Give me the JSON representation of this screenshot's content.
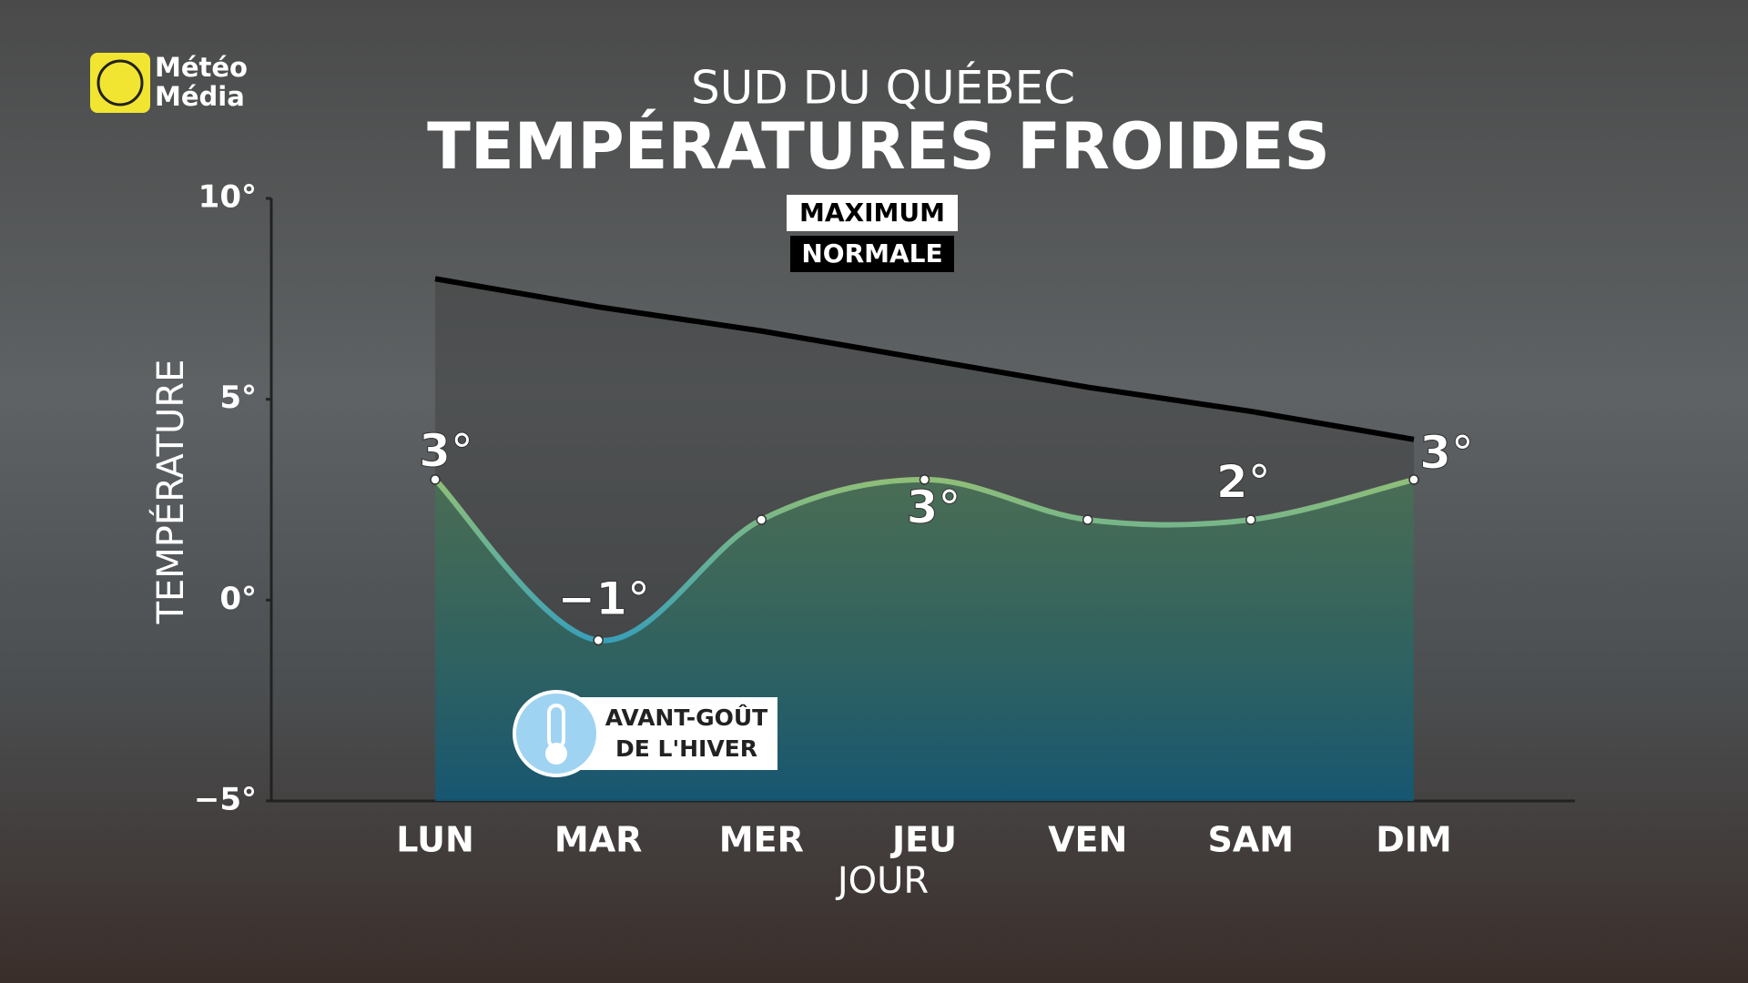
{
  "brand": {
    "line1": "Météo",
    "line2": "Média"
  },
  "chart_data": {
    "type": "line",
    "subtitle": "SUD DU QUÉBEC",
    "title": "TEMPÉRATURES FROIDES",
    "y_label": "TEMPÉRATURE",
    "x_label": "JOUR",
    "annotation": {
      "lines": [
        "AVANT-GOÛT",
        "DE L'HIVER"
      ]
    },
    "categories": [
      "LUN",
      "MAR",
      "MER",
      "JEU",
      "VEN",
      "SAM",
      "DIM"
    ],
    "series": [
      {
        "name": "MAXIMUM",
        "color": "#7fb87a",
        "values": [
          3,
          -1,
          2,
          3,
          2,
          2,
          3
        ],
        "value_labels": [
          "3°",
          "−1°",
          null,
          "3°",
          null,
          "2°",
          "3°"
        ]
      },
      {
        "name": "NORMALE",
        "color": "#000000",
        "values": [
          8,
          7.3,
          6.7,
          6,
          5.3,
          4.7,
          4
        ]
      }
    ],
    "ylim": [
      -5,
      10
    ],
    "yticks": [
      {
        "value": -5,
        "label": "−5°"
      },
      {
        "value": 0,
        "label": "0°"
      },
      {
        "value": 5,
        "label": "5°"
      },
      {
        "value": 10,
        "label": "10°"
      }
    ],
    "grid": false
  }
}
